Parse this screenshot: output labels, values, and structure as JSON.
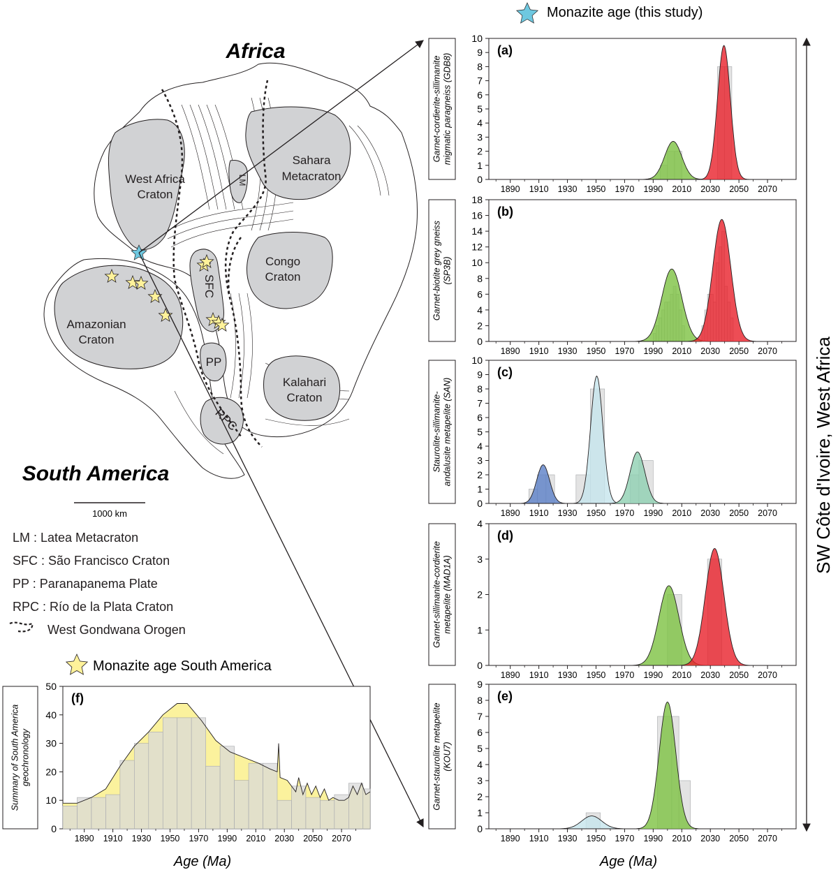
{
  "legend": {
    "monazite_this_study": "Monazite age (this study)",
    "monazite_south_america": "Monazite age South America"
  },
  "map": {
    "continent_africa": "Africa",
    "continent_south_america": "South America",
    "scale_bar": "1000 km",
    "cratons": [
      "West Africa",
      "Craton",
      "Sahara",
      "Metacraton",
      "LM",
      "Congo",
      "Craton",
      "SFC",
      "PP",
      "Kalahari",
      "Craton",
      "Amazonian",
      "Craton",
      "RPC"
    ],
    "abbreviations": [
      "LM : Latea Metacraton",
      "SFC : São Francisco Craton",
      "PP : Paranapanema Plate",
      "RPC : Río de la Plata Craton",
      "West Gondwana Orogen"
    ]
  },
  "side_label": "SW Côte d'Ivoire, West Africa",
  "xlabel": "Age (Ma)",
  "colors": {
    "red": "#e8202a",
    "green": "#7dc242",
    "blue": "#5b7fc7",
    "lightblue": "#c6e5ec",
    "teal": "#8ed0b1",
    "yellow": "#faf08c",
    "hist": "#d9d9d9",
    "star_blue": "#6ec8e0",
    "star_yellow": "#fff29a",
    "craton": "#d1d2d4"
  },
  "chart_data": [
    {
      "panel": "(a)",
      "type": "area",
      "ylabel": [
        "Garnet-cordierite-sillimanite",
        "migmatic paragneiss (GDB8)"
      ],
      "xlim": [
        1875,
        2090
      ],
      "ylim": [
        0,
        10
      ],
      "yticks": [
        0,
        1,
        2,
        3,
        4,
        5,
        6,
        7,
        8,
        9,
        10
      ],
      "xticks": [
        1890,
        1910,
        1930,
        1950,
        1970,
        1990,
        2010,
        2030,
        2050,
        2070
      ],
      "histogram": [
        [
          1995,
          2000,
          1
        ],
        [
          2000,
          2005,
          2
        ],
        [
          2005,
          2010,
          2
        ],
        [
          2035,
          2040,
          8
        ],
        [
          2040,
          2045,
          8
        ]
      ],
      "series": [
        {
          "color": "green",
          "peaks": [
            [
              2004,
              2.7,
              6
            ]
          ]
        },
        {
          "color": "red",
          "peaks": [
            [
              2039.5,
              9.5,
              4.5
            ]
          ]
        }
      ]
    },
    {
      "panel": "(b)",
      "type": "area",
      "ylabel": [
        "Garnet-biotite grey gneiss",
        "(SP3B)"
      ],
      "xlim": [
        1875,
        2090
      ],
      "ylim": [
        0,
        18
      ],
      "yticks": [
        0,
        2,
        4,
        6,
        8,
        10,
        12,
        14,
        16,
        18
      ],
      "xticks": [
        1890,
        1910,
        1930,
        1950,
        1970,
        1990,
        2010,
        2030,
        2050,
        2070
      ],
      "histogram": [
        [
          1990,
          1992,
          1
        ],
        [
          1992,
          1994,
          2
        ],
        [
          1994,
          1996,
          3
        ],
        [
          1996,
          1998,
          4
        ],
        [
          1998,
          2000,
          5
        ],
        [
          2000,
          2002,
          5
        ],
        [
          2002,
          2004,
          6
        ],
        [
          2004,
          2006,
          7
        ],
        [
          2006,
          2008,
          6
        ],
        [
          2008,
          2010,
          4
        ],
        [
          2010,
          2012,
          2
        ],
        [
          2024,
          2026,
          2
        ],
        [
          2026,
          2028,
          4
        ],
        [
          2028,
          2030,
          6
        ],
        [
          2030,
          2032,
          6
        ],
        [
          2032,
          2034,
          5
        ],
        [
          2034,
          2036,
          10
        ],
        [
          2036,
          2038,
          12
        ],
        [
          2038,
          2040,
          14
        ],
        [
          2040,
          2042,
          7
        ],
        [
          2042,
          2044,
          5
        ],
        [
          2044,
          2046,
          3
        ]
      ],
      "series": [
        {
          "color": "green",
          "peaks": [
            [
              2003,
              9.2,
              7
            ]
          ]
        },
        {
          "color": "red",
          "peaks": [
            [
              2038,
              15.5,
              6.3
            ]
          ]
        }
      ]
    },
    {
      "panel": "(c)",
      "type": "area",
      "ylabel": [
        "Staurolite-sillimanite-",
        "andalusite metapelite (SAN)"
      ],
      "xlim": [
        1875,
        2090
      ],
      "ylim": [
        0,
        10
      ],
      "yticks": [
        0,
        1,
        2,
        3,
        4,
        5,
        6,
        7,
        8,
        9,
        10
      ],
      "xticks": [
        1890,
        1910,
        1930,
        1950,
        1970,
        1990,
        2010,
        2030,
        2050,
        2070
      ],
      "histogram": [
        [
          1903,
          1909,
          1
        ],
        [
          1909,
          1915,
          2
        ],
        [
          1915,
          1921,
          2
        ],
        [
          1936,
          1946,
          2
        ],
        [
          1946,
          1956,
          8
        ],
        [
          1974,
          1980,
          2
        ],
        [
          1980,
          1990,
          3
        ]
      ],
      "series": [
        {
          "color": "blue",
          "peaks": [
            [
              1913,
              2.7,
              4.5
            ]
          ]
        },
        {
          "color": "lightblue",
          "peaks": [
            [
              1950.5,
              8.9,
              4.3
            ]
          ]
        },
        {
          "color": "teal",
          "peaks": [
            [
              1979,
              3.6,
              5.2
            ]
          ]
        }
      ]
    },
    {
      "panel": "(d)",
      "type": "area",
      "ylabel": [
        "Garnet-sillimanite-cordierite",
        "metapelite (MAD1A)"
      ],
      "xlim": [
        1875,
        2090
      ],
      "ylim": [
        0,
        4
      ],
      "yticks": [
        0,
        1,
        2,
        3,
        4
      ],
      "xticks": [
        1890,
        1910,
        1930,
        1950,
        1970,
        1990,
        2010,
        2030,
        2050,
        2070
      ],
      "histogram": [
        [
          2000,
          2010,
          2
        ],
        [
          2028,
          2038,
          3
        ]
      ],
      "series": [
        {
          "color": "green",
          "peaks": [
            [
              2001,
              2.25,
              7
            ]
          ]
        },
        {
          "color": "red",
          "peaks": [
            [
              2033,
              3.3,
              6.5
            ]
          ]
        }
      ]
    },
    {
      "panel": "(e)",
      "type": "area",
      "ylabel": [
        "Garnet-staurolite metapelite",
        "(KOU7)"
      ],
      "xlim": [
        1875,
        2090
      ],
      "ylim": [
        0,
        9
      ],
      "yticks": [
        0,
        1,
        2,
        3,
        4,
        5,
        6,
        7,
        8,
        9
      ],
      "xticks": [
        1890,
        1910,
        1930,
        1950,
        1970,
        1990,
        2010,
        2030,
        2050,
        2070
      ],
      "histogram": [
        [
          1943,
          1953,
          1
        ],
        [
          1993,
          2003,
          7
        ],
        [
          2003,
          2008,
          7
        ],
        [
          2008,
          2016,
          3
        ]
      ],
      "series": [
        {
          "color": "lightblue",
          "peaks": [
            [
              1947,
              0.8,
              7
            ]
          ]
        },
        {
          "color": "green",
          "peaks": [
            [
              2000,
              7.9,
              5.8
            ]
          ]
        }
      ]
    },
    {
      "panel": "(f)",
      "type": "area",
      "ylabel": [
        "Summary of South America",
        "geochronology"
      ],
      "xlim": [
        1875,
        2090
      ],
      "ylim": [
        0,
        50
      ],
      "yticks": [
        0,
        10,
        20,
        30,
        40,
        50
      ],
      "xticks": [
        1890,
        1910,
        1930,
        1950,
        1970,
        1990,
        2010,
        2030,
        2050,
        2070
      ],
      "histogram": [
        [
          1875,
          1885,
          8
        ],
        [
          1885,
          1895,
          11
        ],
        [
          1895,
          1905,
          11
        ],
        [
          1905,
          1915,
          12
        ],
        [
          1915,
          1925,
          24
        ],
        [
          1925,
          1935,
          30
        ],
        [
          1935,
          1945,
          34
        ],
        [
          1945,
          1955,
          39
        ],
        [
          1955,
          1965,
          39
        ],
        [
          1965,
          1975,
          39
        ],
        [
          1975,
          1985,
          22
        ],
        [
          1985,
          1995,
          29
        ],
        [
          1995,
          2005,
          17
        ],
        [
          2005,
          2015,
          23
        ],
        [
          2015,
          2025,
          23
        ],
        [
          2025,
          2035,
          10
        ],
        [
          2035,
          2045,
          15
        ],
        [
          2045,
          2055,
          11
        ],
        [
          2055,
          2065,
          10
        ],
        [
          2065,
          2075,
          12
        ],
        [
          2075,
          2085,
          16
        ],
        [
          2085,
          2090,
          14
        ]
      ],
      "curve": [
        [
          1875,
          9
        ],
        [
          1885,
          9
        ],
        [
          1895,
          11
        ],
        [
          1905,
          14
        ],
        [
          1915,
          22
        ],
        [
          1925,
          29
        ],
        [
          1935,
          34
        ],
        [
          1945,
          40
        ],
        [
          1955,
          44
        ],
        [
          1962,
          44
        ],
        [
          1972,
          38
        ],
        [
          1982,
          31
        ],
        [
          1992,
          27
        ],
        [
          2002,
          25
        ],
        [
          2012,
          23
        ],
        [
          2020,
          21
        ],
        [
          2025,
          20
        ],
        [
          2026,
          30
        ],
        [
          2027,
          18
        ],
        [
          2032,
          17
        ],
        [
          2038,
          13
        ],
        [
          2040,
          18
        ],
        [
          2043,
          12
        ],
        [
          2046,
          16
        ],
        [
          2049,
          12
        ],
        [
          2052,
          15
        ],
        [
          2055,
          11
        ],
        [
          2058,
          14
        ],
        [
          2061,
          10
        ],
        [
          2064,
          11
        ],
        [
          2068,
          10
        ],
        [
          2072,
          10
        ],
        [
          2075,
          11
        ],
        [
          2078,
          15
        ],
        [
          2081,
          12
        ],
        [
          2084,
          16
        ],
        [
          2087,
          12
        ],
        [
          2090,
          13
        ]
      ]
    }
  ]
}
